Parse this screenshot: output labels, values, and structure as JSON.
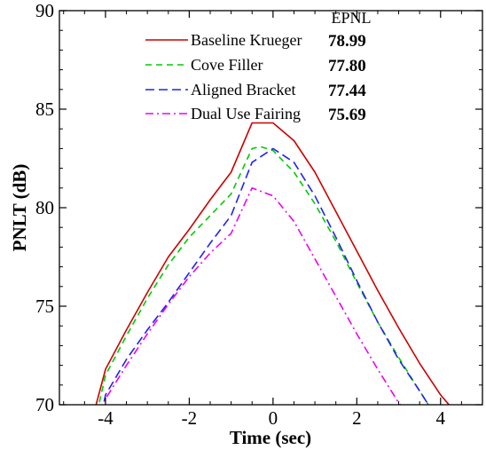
{
  "chart_data": {
    "type": "line",
    "xlabel": "Time (sec)",
    "ylabel": "PNLT (dB)",
    "xlim": [
      -5.1,
      5.0
    ],
    "ylim": [
      70,
      90
    ],
    "xticks": [
      -4,
      -2,
      0,
      2,
      4
    ],
    "yticks": [
      70,
      75,
      80,
      85,
      90
    ],
    "xtick_labels": [
      "-4",
      "-2",
      "0",
      "2",
      "4"
    ],
    "ytick_labels": [
      "70",
      "75",
      "80",
      "85",
      "90"
    ],
    "grid": false,
    "legend_position": "top-right",
    "legend_value_header": "EPNL",
    "series": [
      {
        "name": "Baseline Krueger",
        "epnl": "78.99",
        "color": "#cc0000",
        "dash": "solid",
        "x": [
          -4.3,
          -4.0,
          -3.5,
          -3.0,
          -2.5,
          -2.0,
          -1.5,
          -1.0,
          -0.5,
          0.0,
          0.5,
          1.0,
          1.5,
          2.0,
          2.5,
          3.0,
          3.5,
          4.0,
          4.4
        ],
        "y": [
          69.4,
          71.8,
          73.8,
          75.7,
          77.5,
          78.9,
          80.4,
          81.8,
          84.3,
          84.3,
          83.4,
          81.8,
          79.8,
          77.8,
          75.8,
          73.9,
          72.1,
          70.5,
          69.5
        ]
      },
      {
        "name": "Cove Filler",
        "epnl": "77.80",
        "color": "#00cc00",
        "dash": "dashed",
        "x": [
          -4.2,
          -4.0,
          -3.5,
          -3.0,
          -2.5,
          -2.0,
          -1.5,
          -1.0,
          -0.5,
          -0.3,
          0.0,
          0.5,
          1.0,
          1.5,
          2.0,
          2.5,
          3.0,
          3.5,
          3.8
        ],
        "y": [
          69.6,
          71.5,
          73.5,
          75.4,
          77.1,
          78.5,
          79.6,
          80.7,
          83.0,
          83.1,
          82.9,
          81.8,
          80.2,
          78.3,
          76.2,
          74.2,
          72.4,
          70.7,
          69.7
        ]
      },
      {
        "name": "Aligned Bracket",
        "epnl": "77.44",
        "color": "#2222ee",
        "dash": "longdash",
        "x": [
          -4.1,
          -4.0,
          -3.5,
          -3.0,
          -2.5,
          -2.0,
          -1.5,
          -1.0,
          -0.5,
          0.0,
          0.5,
          1.0,
          1.5,
          2.0,
          2.5,
          3.0,
          3.5,
          3.8
        ],
        "y": [
          69.5,
          70.5,
          72.3,
          73.8,
          75.2,
          76.7,
          78.2,
          79.6,
          82.3,
          83.0,
          82.3,
          80.6,
          78.5,
          76.3,
          74.2,
          72.3,
          70.7,
          69.7
        ]
      },
      {
        "name": "Dual Use Fairing",
        "epnl": "75.69",
        "color": "#ee00ee",
        "dash": "dashdot",
        "x": [
          -4.1,
          -4.0,
          -3.5,
          -3.0,
          -2.5,
          -2.0,
          -1.5,
          -1.0,
          -0.5,
          0.0,
          0.5,
          1.0,
          1.5,
          2.0,
          2.5,
          3.0,
          3.2
        ],
        "y": [
          69.6,
          70.3,
          72.0,
          73.6,
          75.1,
          76.5,
          77.7,
          78.7,
          81.0,
          80.6,
          79.3,
          77.4,
          75.5,
          73.6,
          71.8,
          70.1,
          69.6
        ]
      }
    ]
  }
}
